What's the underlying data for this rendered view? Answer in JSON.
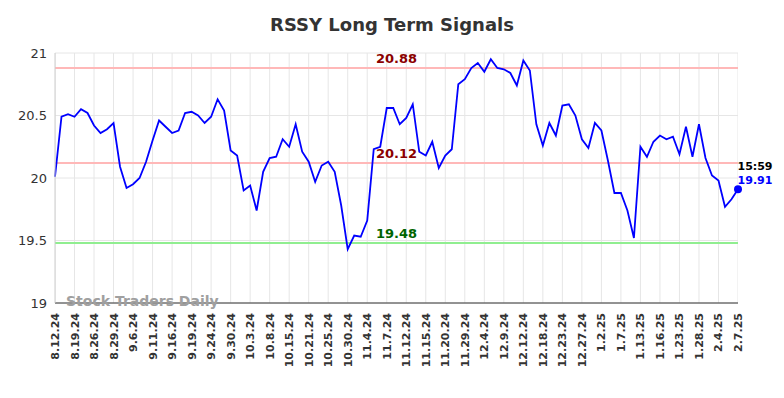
{
  "chart_data": {
    "type": "line",
    "title": "RSSY Long Term Signals",
    "categories": [
      "8.12.24",
      null,
      null,
      "8.19.24",
      null,
      null,
      "8.26.24",
      null,
      null,
      "8.29.24",
      null,
      null,
      "9.6.24",
      null,
      null,
      "9.11.24",
      null,
      null,
      "9.16.24",
      null,
      null,
      "9.19.24",
      null,
      null,
      "9.24.24",
      null,
      null,
      "9.30.24",
      null,
      null,
      "10.3.24",
      null,
      null,
      "10.8.24",
      null,
      null,
      "10.15.24",
      null,
      null,
      "10.21.24",
      null,
      null,
      "10.25.24",
      null,
      null,
      "10.30.24",
      null,
      null,
      "11.4.24",
      null,
      null,
      "11.7.24",
      null,
      null,
      "11.12.24",
      null,
      null,
      "11.15.24",
      null,
      null,
      "11.20.24",
      null,
      null,
      "11.29.24",
      null,
      null,
      "12.4.24",
      null,
      null,
      "12.9.24",
      null,
      null,
      "12.12.24",
      null,
      null,
      "12.18.24",
      null,
      null,
      "12.23.24",
      null,
      null,
      "12.27.24",
      null,
      null,
      "1.2.25",
      null,
      null,
      "1.7.25",
      null,
      null,
      "1.13.25",
      null,
      null,
      "1.16.25",
      null,
      null,
      "1.23.25",
      null,
      null,
      "1.28.25",
      null,
      null,
      "2.4.25",
      null,
      null,
      "2.7.25"
    ],
    "values": [
      20.01,
      20.49,
      20.51,
      20.49,
      20.55,
      20.52,
      20.42,
      20.36,
      20.39,
      20.44,
      20.09,
      19.92,
      19.95,
      20.0,
      20.13,
      20.3,
      20.46,
      20.41,
      20.36,
      20.38,
      20.52,
      20.53,
      20.5,
      20.44,
      20.49,
      20.63,
      20.54,
      20.22,
      20.18,
      19.9,
      19.94,
      19.74,
      20.05,
      20.16,
      20.17,
      20.31,
      20.25,
      20.43,
      20.21,
      20.13,
      19.97,
      20.1,
      20.13,
      20.05,
      19.78,
      19.43,
      19.54,
      19.53,
      19.66,
      20.23,
      20.25,
      20.56,
      20.56,
      20.43,
      20.48,
      20.59,
      20.21,
      20.18,
      20.29,
      20.08,
      20.18,
      20.23,
      20.75,
      20.79,
      20.88,
      20.92,
      20.85,
      20.95,
      20.88,
      20.87,
      20.84,
      20.74,
      20.94,
      20.86,
      20.43,
      20.26,
      20.44,
      20.34,
      20.58,
      20.59,
      20.5,
      20.31,
      20.24,
      20.44,
      20.38,
      20.14,
      19.88,
      19.88,
      19.74,
      19.52,
      20.25,
      20.17,
      20.29,
      20.34,
      20.31,
      20.33,
      20.19,
      20.41,
      20.17,
      20.43,
      20.16,
      20.02,
      19.98,
      19.77,
      19.83,
      19.91
    ],
    "color": "#0000ff",
    "ylim": [
      19,
      21
    ],
    "yticks": [
      19,
      19.5,
      20,
      20.5,
      21
    ],
    "grid": true,
    "annotations": [
      {
        "y": 20.88,
        "text": "20.88",
        "color": "#ffb8b8"
      },
      {
        "y": 20.12,
        "text": "20.12",
        "color": "#ffb8b8"
      },
      {
        "y": 19.48,
        "text": "19.48",
        "color": "#90ee90"
      }
    ],
    "end_label": {
      "time": "15:59",
      "value": 19.91
    },
    "watermark": "Stock Traders Daily"
  }
}
